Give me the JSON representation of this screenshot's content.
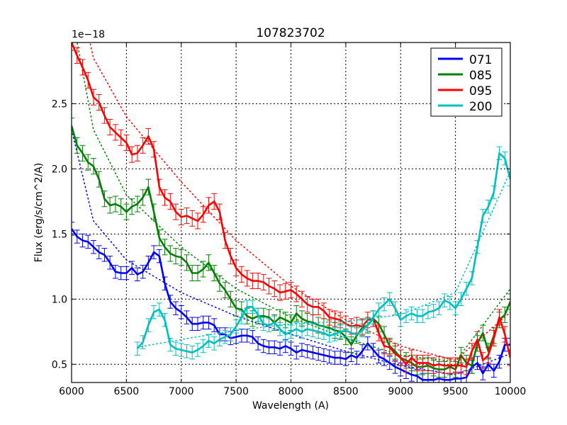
{
  "chart_data": {
    "type": "line",
    "title": "107823702",
    "xlabel": "Wavelength (A)",
    "ylabel": "Flux (erg/s/cm^2/A)",
    "y_offset_label": "1e−18",
    "xlim": [
      6000,
      10000
    ],
    "ylim": [
      0.36,
      2.97
    ],
    "y_scale_factor": 1e-18,
    "grid": true,
    "legend_position": "upper right",
    "x_ticks": [
      6000,
      6500,
      7000,
      7500,
      8000,
      8500,
      9000,
      9500,
      10000
    ],
    "x_tick_labels": [
      "6000",
      "6500",
      "7000",
      "7500",
      "8000",
      "8500",
      "9000",
      "9500",
      "10000"
    ],
    "y_ticks": [
      0.5,
      1.0,
      1.5,
      2.0,
      2.5
    ],
    "y_tick_labels": [
      "0.5",
      "1.0",
      "1.5",
      "2.0",
      "2.5"
    ],
    "series": [
      {
        "name": "071",
        "color": "#0000ff",
        "error": 0.05,
        "x": [
          6000,
          6050,
          6100,
          6150,
          6200,
          6250,
          6300,
          6350,
          6400,
          6450,
          6500,
          6550,
          6600,
          6650,
          6700,
          6750,
          6800,
          6850,
          6900,
          6950,
          7000,
          7050,
          7100,
          7150,
          7200,
          7250,
          7300,
          7350,
          7400,
          7450,
          7500,
          7550,
          7600,
          7650,
          7700,
          7750,
          7800,
          7850,
          7900,
          7950,
          8000,
          8050,
          8100,
          8150,
          8200,
          8250,
          8300,
          8350,
          8400,
          8450,
          8500,
          8550,
          8600,
          8650,
          8700,
          8750,
          8800,
          8850,
          8900,
          8950,
          9000,
          9050,
          9100,
          9150,
          9200,
          9250,
          9300,
          9350,
          9400,
          9450,
          9500,
          9550,
          9600,
          9650,
          9700,
          9750,
          9800,
          9850,
          9900,
          9950,
          10000
        ],
        "y": [
          1.54,
          1.48,
          1.45,
          1.44,
          1.4,
          1.36,
          1.34,
          1.28,
          1.21,
          1.2,
          1.2,
          1.24,
          1.19,
          1.21,
          1.28,
          1.36,
          1.33,
          1.12,
          0.98,
          0.93,
          0.9,
          0.86,
          0.81,
          0.81,
          0.82,
          0.82,
          0.8,
          0.73,
          0.73,
          0.7,
          0.71,
          0.72,
          0.72,
          0.71,
          0.66,
          0.64,
          0.63,
          0.63,
          0.62,
          0.64,
          0.62,
          0.59,
          0.61,
          0.6,
          0.59,
          0.58,
          0.57,
          0.56,
          0.55,
          0.55,
          0.54,
          0.57,
          0.55,
          0.6,
          0.66,
          0.61,
          0.56,
          0.54,
          0.51,
          0.48,
          0.46,
          0.44,
          0.42,
          0.41,
          0.38,
          0.38,
          0.38,
          0.39,
          0.38,
          0.38,
          0.39,
          0.39,
          0.4,
          0.48,
          0.51,
          0.43,
          0.5,
          0.45,
          0.52,
          0.65,
          0.65
        ],
        "fit": {
          "x": [
            6000,
            6200,
            6500,
            7000,
            7500,
            8000,
            8500,
            9000,
            9500,
            10000
          ],
          "y": [
            2.3,
            1.6,
            1.3,
            1.05,
            0.87,
            0.73,
            0.6,
            0.49,
            0.42,
            0.58
          ]
        }
      },
      {
        "name": "085",
        "color": "#008000",
        "error": 0.06,
        "x": [
          6000,
          6050,
          6100,
          6150,
          6200,
          6250,
          6300,
          6350,
          6400,
          6450,
          6500,
          6550,
          6600,
          6650,
          6700,
          6750,
          6800,
          6850,
          6900,
          6950,
          7000,
          7050,
          7100,
          7150,
          7200,
          7250,
          7300,
          7350,
          7400,
          7450,
          7500,
          7550,
          7600,
          7650,
          7700,
          7750,
          7800,
          7850,
          7900,
          7950,
          8000,
          8050,
          8100,
          8150,
          8200,
          8250,
          8300,
          8350,
          8400,
          8450,
          8500,
          8550,
          8600,
          8650,
          8700,
          8750,
          8800,
          8850,
          8900,
          8950,
          9000,
          9050,
          9100,
          9150,
          9200,
          9250,
          9300,
          9350,
          9400,
          9450,
          9500,
          9550,
          9600,
          9650,
          9700,
          9750,
          9800,
          9850,
          9900,
          9950,
          10000
        ],
        "y": [
          2.33,
          2.18,
          2.12,
          2.05,
          2.02,
          1.92,
          1.77,
          1.72,
          1.73,
          1.71,
          1.67,
          1.71,
          1.73,
          1.78,
          1.86,
          1.67,
          1.47,
          1.4,
          1.35,
          1.33,
          1.32,
          1.28,
          1.2,
          1.2,
          1.23,
          1.28,
          1.2,
          1.12,
          1.07,
          1.0,
          0.93,
          0.92,
          0.87,
          0.85,
          0.87,
          0.87,
          0.86,
          0.82,
          0.86,
          0.84,
          0.82,
          0.89,
          0.85,
          0.83,
          0.82,
          0.8,
          0.79,
          0.78,
          0.76,
          0.75,
          0.71,
          0.65,
          0.72,
          0.78,
          0.8,
          0.85,
          0.81,
          0.73,
          0.64,
          0.6,
          0.55,
          0.53,
          0.51,
          0.48,
          0.48,
          0.49,
          0.47,
          0.46,
          0.46,
          0.48,
          0.46,
          0.57,
          0.51,
          0.49,
          0.66,
          0.74,
          0.6,
          0.72,
          0.84,
          0.88,
          0.98
        ],
        "fit": {
          "x": [
            6000,
            6200,
            6500,
            7000,
            7500,
            8000,
            8500,
            9000,
            9500,
            10000
          ],
          "y": [
            3.2,
            2.3,
            1.8,
            1.4,
            1.08,
            0.86,
            0.7,
            0.57,
            0.52,
            1.08
          ]
        }
      },
      {
        "name": "095",
        "color": "#ff0000",
        "error": 0.06,
        "x": [
          6000,
          6050,
          6100,
          6150,
          6200,
          6250,
          6300,
          6350,
          6400,
          6450,
          6500,
          6550,
          6600,
          6650,
          6700,
          6750,
          6800,
          6850,
          6900,
          6950,
          7000,
          7050,
          7100,
          7150,
          7200,
          7250,
          7300,
          7350,
          7400,
          7450,
          7500,
          7550,
          7600,
          7650,
          7700,
          7750,
          7800,
          7850,
          7900,
          7950,
          8000,
          8050,
          8100,
          8150,
          8200,
          8250,
          8300,
          8350,
          8400,
          8450,
          8500,
          8550,
          8600,
          8650,
          8700,
          8750,
          8800,
          8850,
          8900,
          8950,
          9000,
          9050,
          9100,
          9150,
          9200,
          9250,
          9300,
          9350,
          9400,
          9450,
          9500,
          9550,
          9600,
          9650,
          9700,
          9750,
          9800,
          9850,
          9900,
          9950,
          10000
        ],
        "y": [
          2.97,
          2.87,
          2.78,
          2.68,
          2.55,
          2.51,
          2.41,
          2.32,
          2.28,
          2.24,
          2.2,
          2.11,
          2.12,
          2.18,
          2.25,
          2.15,
          1.86,
          1.78,
          1.75,
          1.67,
          1.63,
          1.64,
          1.62,
          1.6,
          1.65,
          1.72,
          1.75,
          1.67,
          1.45,
          1.33,
          1.24,
          1.19,
          1.16,
          1.14,
          1.14,
          1.13,
          1.1,
          1.08,
          1.05,
          1.06,
          1.07,
          1.04,
          1.0,
          0.96,
          0.94,
          0.94,
          0.91,
          0.86,
          0.85,
          0.84,
          0.81,
          0.79,
          0.8,
          0.79,
          0.84,
          0.85,
          0.74,
          0.64,
          0.63,
          0.58,
          0.55,
          0.5,
          0.55,
          0.51,
          0.51,
          0.51,
          0.49,
          0.5,
          0.49,
          0.49,
          0.49,
          0.49,
          0.48,
          0.6,
          0.69,
          0.53,
          0.57,
          0.7,
          0.86,
          0.73,
          0.55
        ],
        "fit": {
          "x": [
            6000,
            6200,
            6500,
            7000,
            7500,
            8000,
            8500,
            9000,
            9500,
            10000
          ],
          "y": [
            3.6,
            2.85,
            2.4,
            1.9,
            1.45,
            1.1,
            0.84,
            0.64,
            0.53,
            0.9
          ]
        }
      },
      {
        "name": "200",
        "color": "#00bfbf",
        "error": 0.05,
        "x": [
          6600,
          6650,
          6700,
          6750,
          6800,
          6850,
          6900,
          6950,
          7000,
          7050,
          7100,
          7150,
          7200,
          7250,
          7300,
          7350,
          7400,
          7450,
          7500,
          7550,
          7600,
          7650,
          7700,
          7750,
          7800,
          7850,
          7900,
          7950,
          8000,
          8050,
          8100,
          8150,
          8200,
          8250,
          8300,
          8350,
          8400,
          8450,
          8500,
          8550,
          8600,
          8650,
          8700,
          8750,
          8800,
          8850,
          8900,
          8950,
          9000,
          9050,
          9100,
          9150,
          9200,
          9250,
          9300,
          9350,
          9400,
          9450,
          9500,
          9550,
          9600,
          9650,
          9700,
          9750,
          9800,
          9850,
          9900,
          9950,
          10000
        ],
        "y": [
          0.62,
          0.67,
          0.8,
          0.9,
          0.92,
          0.84,
          0.65,
          0.62,
          0.61,
          0.6,
          0.59,
          0.61,
          0.64,
          0.68,
          0.66,
          0.69,
          0.71,
          0.73,
          0.79,
          0.86,
          0.94,
          0.94,
          0.88,
          0.81,
          0.8,
          0.82,
          0.77,
          0.73,
          0.75,
          0.77,
          0.75,
          0.77,
          0.76,
          0.75,
          0.74,
          0.72,
          0.73,
          0.75,
          0.76,
          0.74,
          0.73,
          0.76,
          0.8,
          0.86,
          0.92,
          0.96,
          1.0,
          0.93,
          0.84,
          0.87,
          0.89,
          0.87,
          0.87,
          0.9,
          0.91,
          0.93,
          0.99,
          0.97,
          0.93,
          1.0,
          1.08,
          1.16,
          1.4,
          1.64,
          1.71,
          1.82,
          2.12,
          2.08,
          1.92
        ],
        "fit": {
          "x": [
            6600,
            7000,
            7500,
            8000,
            8500,
            9000,
            9500,
            10000
          ],
          "y": [
            0.63,
            0.69,
            0.76,
            0.81,
            0.83,
            0.88,
            1.05,
            1.98
          ]
        }
      }
    ]
  },
  "legend": {
    "items": [
      {
        "label": "071",
        "color": "#0000ff"
      },
      {
        "label": "085",
        "color": "#008000"
      },
      {
        "label": "095",
        "color": "#ff0000"
      },
      {
        "label": "200",
        "color": "#00bfbf"
      }
    ]
  }
}
